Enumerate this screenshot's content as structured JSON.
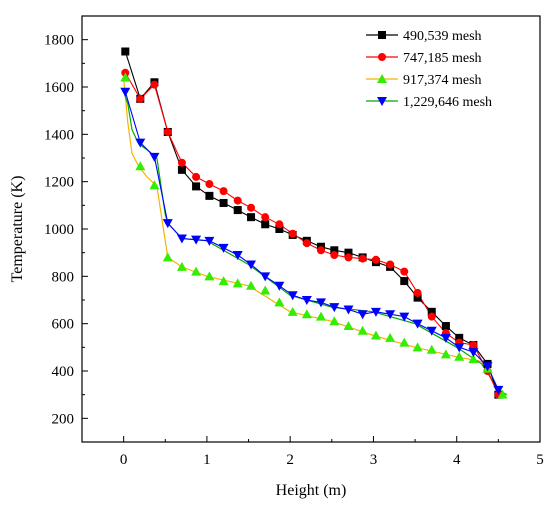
{
  "chart_data": {
    "type": "line",
    "title": "",
    "xlabel": "Height (m)",
    "ylabel": "Temperature (K)",
    "xlim": [
      -0.5,
      5
    ],
    "ylim": [
      100,
      1900
    ],
    "xticks": [
      "0",
      "1",
      "2",
      "3",
      "4",
      "5"
    ],
    "yticks": [
      "200",
      "400",
      "600",
      "800",
      "1000",
      "1200",
      "1400",
      "1600",
      "1800"
    ],
    "legend_position": "top-right",
    "series": [
      {
        "name": "490,539 mesh",
        "color": "#000000",
        "marker": "square",
        "x": [
          0.02,
          0.2,
          0.37,
          0.53,
          0.7,
          0.87,
          1.03,
          1.2,
          1.37,
          1.53,
          1.7,
          1.87,
          2.03,
          2.2,
          2.37,
          2.53,
          2.7,
          2.87,
          3.03,
          3.2,
          3.37,
          3.53,
          3.7,
          3.87,
          4.03,
          4.2,
          4.37,
          4.5
        ],
        "y": [
          1750,
          1550,
          1620,
          1410,
          1250,
          1180,
          1140,
          1110,
          1080,
          1050,
          1020,
          1000,
          975,
          950,
          925,
          910,
          900,
          880,
          860,
          840,
          780,
          710,
          650,
          590,
          540,
          510,
          430,
          300
        ]
      },
      {
        "name": "747,185 mesh",
        "color": "#ff0000",
        "marker": "circle",
        "x": [
          0.02,
          0.2,
          0.37,
          0.53,
          0.7,
          0.87,
          1.03,
          1.2,
          1.37,
          1.53,
          1.7,
          1.87,
          2.03,
          2.2,
          2.37,
          2.53,
          2.7,
          2.87,
          3.03,
          3.2,
          3.37,
          3.53,
          3.7,
          3.87,
          4.03,
          4.2,
          4.37,
          4.5
        ],
        "y": [
          1660,
          1550,
          1610,
          1410,
          1280,
          1220,
          1190,
          1160,
          1120,
          1090,
          1050,
          1020,
          980,
          940,
          910,
          890,
          880,
          875,
          870,
          850,
          820,
          730,
          630,
          560,
          520,
          510,
          400,
          300
        ]
      },
      {
        "name": "917,374 mesh",
        "color": "#ffaa00",
        "marker": "triangle-up",
        "x": [
          0.02,
          0.2,
          0.37,
          0.53,
          0.7,
          0.87,
          1.03,
          1.2,
          1.37,
          1.53,
          1.7,
          1.87,
          2.03,
          2.2,
          2.37,
          2.53,
          2.7,
          2.87,
          3.03,
          3.2,
          3.37,
          3.53,
          3.7,
          3.87,
          4.03,
          4.2,
          4.37,
          4.55
        ],
        "y": [
          1640,
          1265,
          1185,
          880,
          840,
          820,
          800,
          780,
          770,
          760,
          740,
          690,
          650,
          640,
          630,
          610,
          590,
          570,
          550,
          540,
          520,
          500,
          490,
          470,
          460,
          450,
          410,
          300
        ]
      },
      {
        "name": "1,229,646 mesh",
        "color": "#0000ff",
        "marker": "triangle-down",
        "x": [
          0.02,
          0.2,
          0.37,
          0.53,
          0.7,
          0.87,
          1.03,
          1.2,
          1.37,
          1.53,
          1.7,
          1.87,
          2.03,
          2.2,
          2.37,
          2.53,
          2.7,
          2.87,
          3.03,
          3.2,
          3.37,
          3.53,
          3.7,
          3.87,
          4.03,
          4.2,
          4.37,
          4.5
        ],
        "y": [
          1580,
          1365,
          1305,
          1025,
          960,
          955,
          950,
          920,
          890,
          850,
          800,
          760,
          720,
          700,
          690,
          670,
          660,
          640,
          650,
          640,
          630,
          600,
          570,
          540,
          500,
          480,
          420,
          320
        ]
      }
    ],
    "line_series": [
      {
        "name": "917,374 mesh",
        "color": "#f5b400",
        "x": [
          0.0,
          0.05,
          0.1,
          0.18,
          0.28,
          0.4,
          0.53,
          0.7,
          1.0,
          1.5,
          2.0,
          2.5,
          3.0,
          3.5,
          4.0,
          4.3,
          4.45,
          4.55
        ],
        "y": [
          1640,
          1450,
          1320,
          1265,
          1220,
          1180,
          880,
          840,
          800,
          760,
          650,
          610,
          550,
          500,
          460,
          440,
          350,
          300
        ]
      },
      {
        "name": "1,229,646 mesh",
        "color": "#00aa00",
        "x": [
          0.0,
          0.05,
          0.1,
          0.18,
          0.3,
          0.4,
          0.5,
          0.53,
          0.7,
          1.0,
          1.5,
          2.0,
          2.5,
          3.0,
          3.5,
          4.0,
          4.3,
          4.5,
          4.6
        ],
        "y": [
          1580,
          1530,
          1420,
          1360,
          1330,
          1300,
          1060,
          1025,
          960,
          950,
          850,
          720,
          670,
          650,
          600,
          500,
          430,
          320,
          300
        ]
      }
    ]
  }
}
